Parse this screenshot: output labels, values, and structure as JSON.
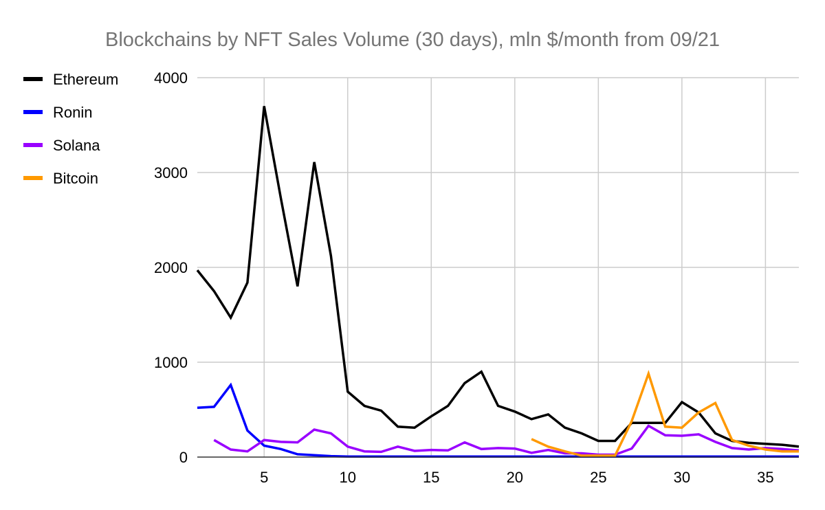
{
  "chart_data": {
    "type": "line",
    "title": "Blockchains by NFT Sales Volume (30 days), mln $/month from 09/21",
    "xlabel": "",
    "ylabel": "",
    "xlim": [
      1,
      37
    ],
    "ylim": [
      0,
      4000
    ],
    "x_ticks": [
      5,
      10,
      15,
      20,
      25,
      30,
      35
    ],
    "y_ticks": [
      0,
      1000,
      2000,
      3000,
      4000
    ],
    "grid": true,
    "legend_position": "left",
    "x": [
      1,
      2,
      3,
      4,
      5,
      6,
      7,
      8,
      9,
      10,
      11,
      12,
      13,
      14,
      15,
      16,
      17,
      18,
      19,
      20,
      21,
      22,
      23,
      24,
      25,
      26,
      27,
      28,
      29,
      30,
      31,
      32,
      33,
      34,
      35,
      36,
      37
    ],
    "series": [
      {
        "name": "Ethereum",
        "color": "#000000",
        "values": [
          1970,
          1750,
          1470,
          1840,
          3700,
          2730,
          1800,
          3110,
          2120,
          690,
          540,
          490,
          320,
          310,
          430,
          540,
          780,
          900,
          540,
          480,
          400,
          450,
          310,
          250,
          170,
          170,
          360,
          360,
          360,
          580,
          470,
          250,
          170,
          150,
          140,
          130,
          110
        ]
      },
      {
        "name": "Ronin",
        "color": "#0000ff",
        "values": [
          520,
          530,
          760,
          280,
          120,
          85,
          30,
          20,
          10,
          5,
          5,
          5,
          5,
          5,
          5,
          5,
          5,
          5,
          5,
          5,
          5,
          5,
          5,
          5,
          5,
          5,
          5,
          5,
          5,
          5,
          5,
          5,
          5,
          5,
          5,
          5,
          5
        ]
      },
      {
        "name": "Solana",
        "color": "#9900ff",
        "values": [
          null,
          180,
          80,
          60,
          180,
          160,
          155,
          290,
          250,
          110,
          60,
          55,
          110,
          65,
          75,
          70,
          155,
          85,
          95,
          90,
          45,
          75,
          40,
          40,
          25,
          25,
          90,
          330,
          230,
          225,
          240,
          160,
          95,
          80,
          95,
          85,
          70
        ]
      },
      {
        "name": "Bitcoin",
        "color": "#ff9900",
        "values": [
          null,
          null,
          null,
          null,
          null,
          null,
          null,
          null,
          null,
          null,
          null,
          null,
          null,
          null,
          null,
          null,
          null,
          null,
          null,
          null,
          190,
          110,
          60,
          15,
          15,
          15,
          380,
          880,
          320,
          310,
          470,
          570,
          180,
          120,
          80,
          60,
          60
        ]
      }
    ]
  }
}
